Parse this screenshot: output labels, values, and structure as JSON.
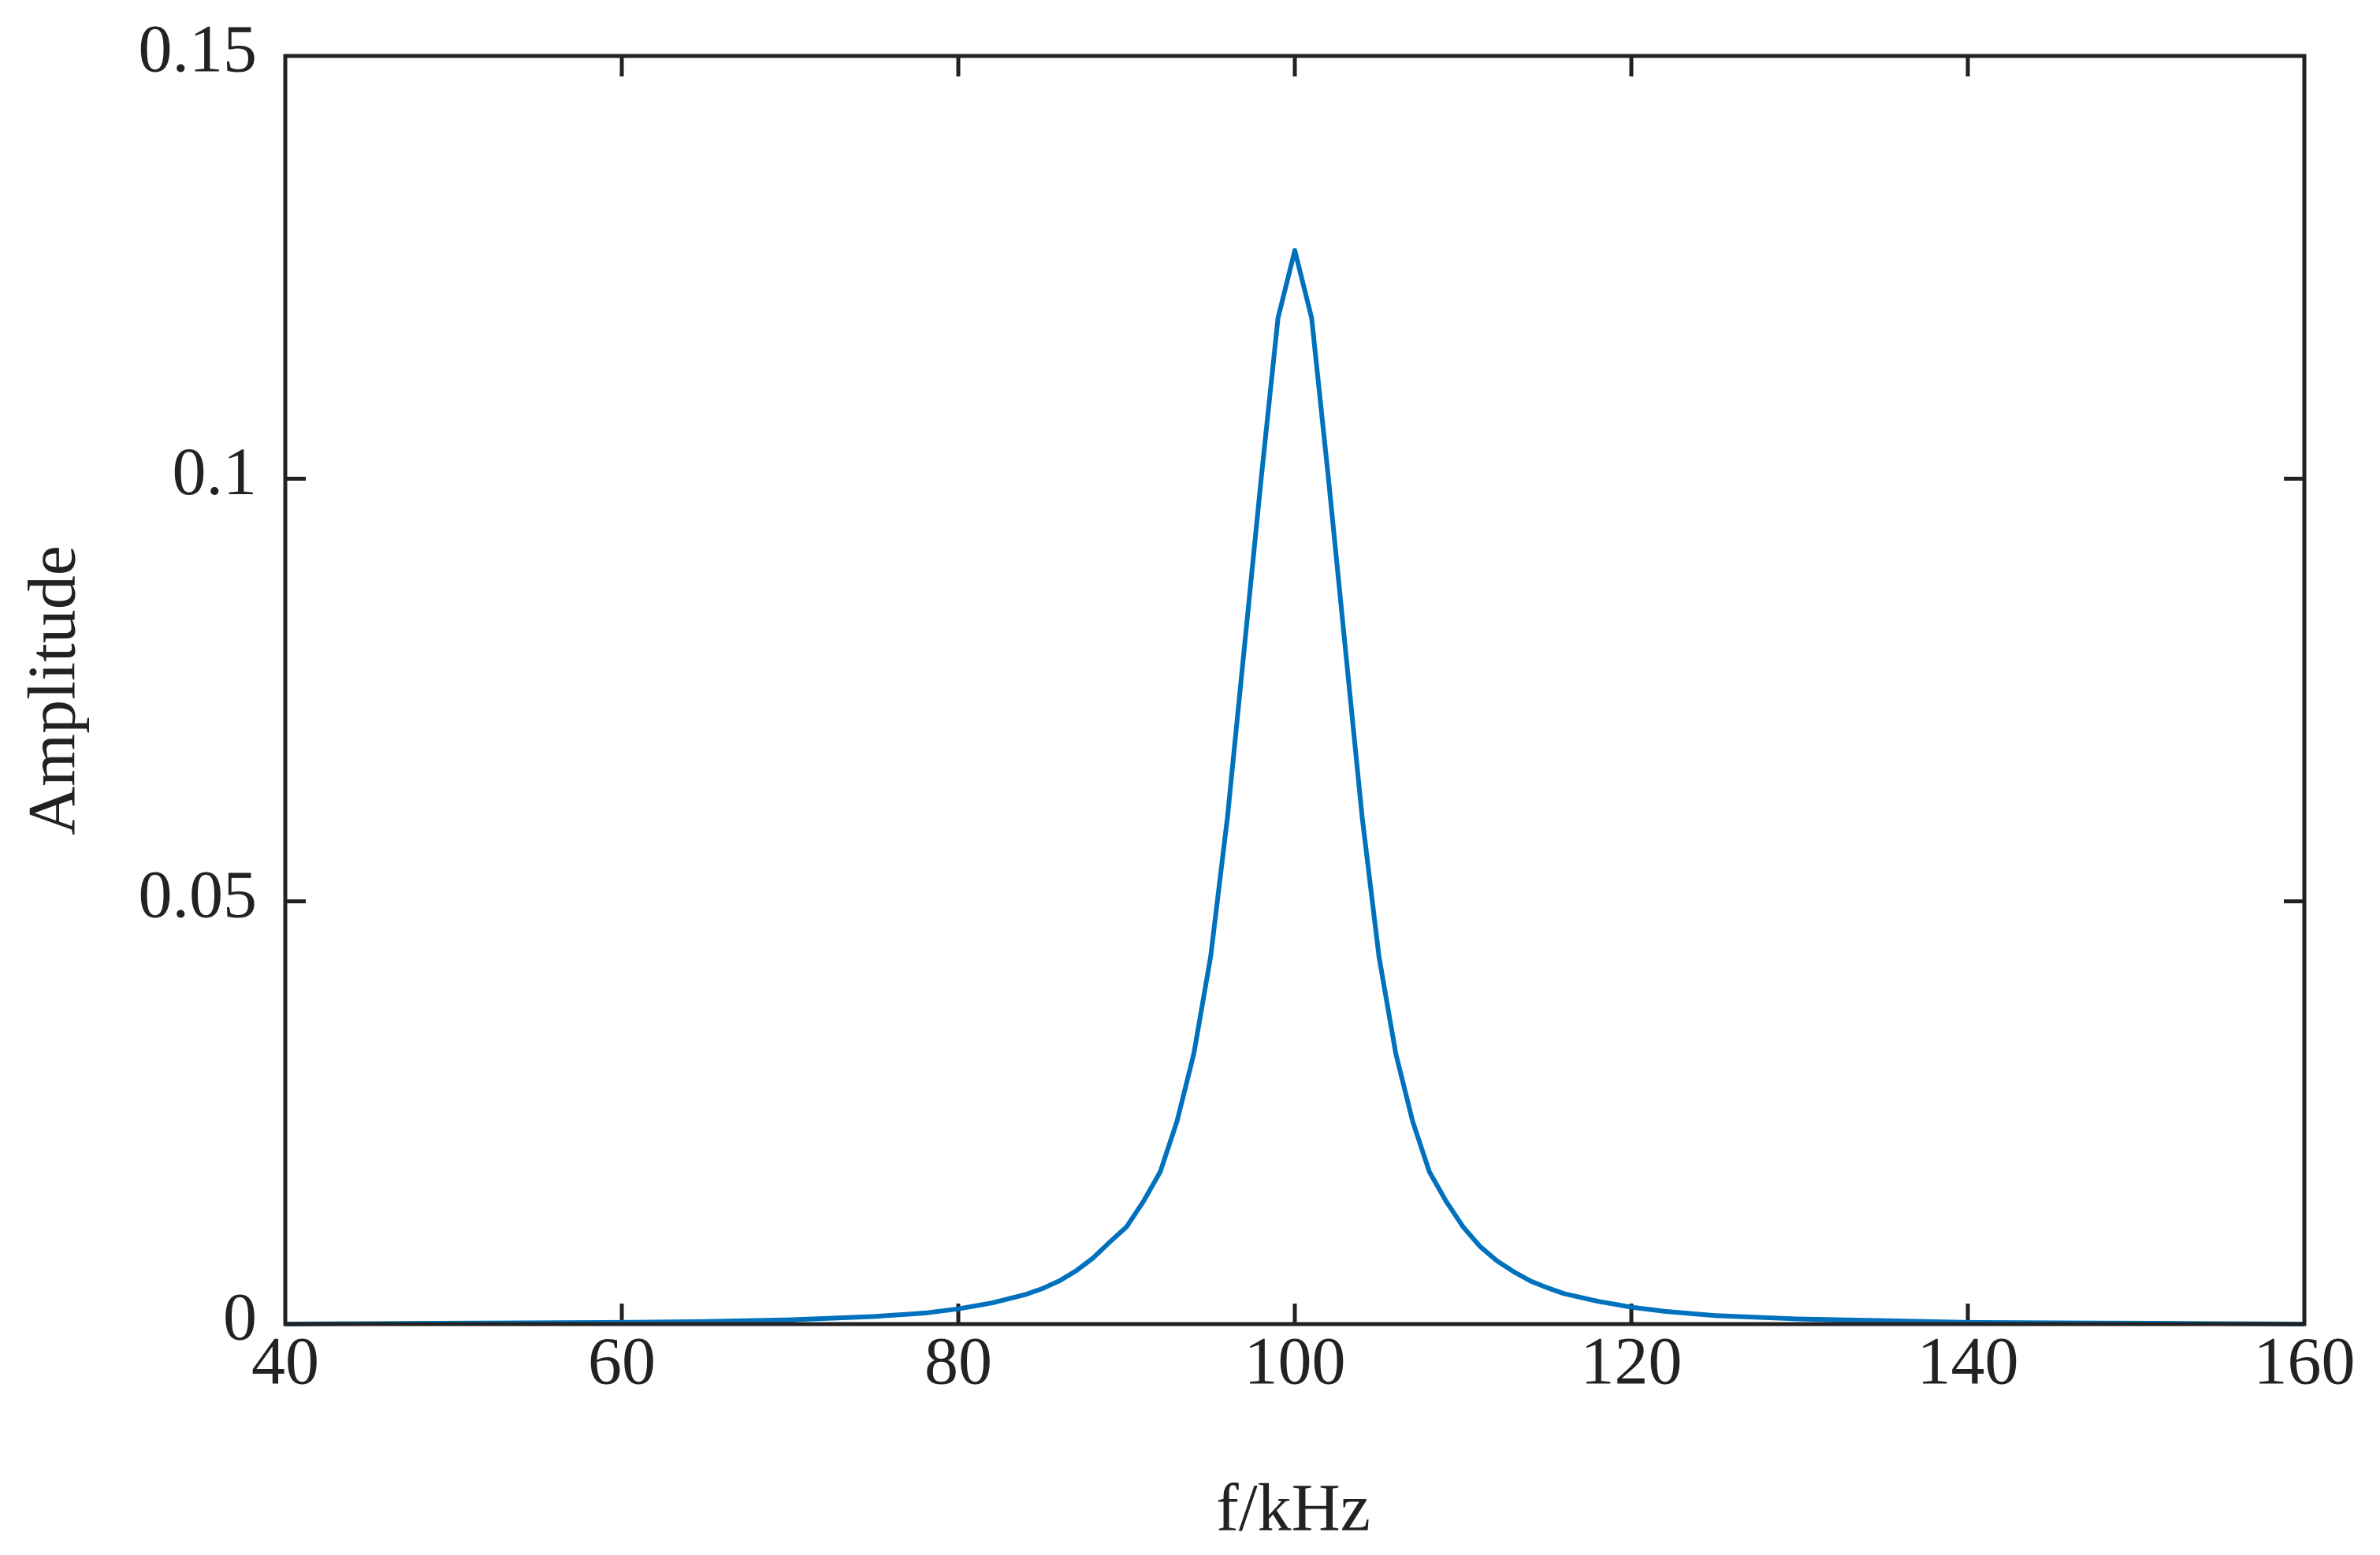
{
  "chart_data": {
    "type": "line",
    "xlabel": "f/kHz",
    "ylabel": "Amplitude",
    "x": [
      40,
      50,
      60,
      65,
      70,
      75,
      78,
      80,
      82,
      84,
      85,
      86,
      87,
      88,
      89,
      90,
      91,
      92,
      93,
      94,
      95,
      96,
      97,
      98,
      99,
      100,
      101,
      102,
      103,
      104,
      105,
      106,
      107,
      108,
      109,
      110,
      111,
      112,
      113,
      114,
      115,
      116,
      118,
      120,
      122,
      125,
      130,
      140,
      150,
      160
    ],
    "series": [
      {
        "color": "#0072bd",
        "values": [
          0,
          0.0001,
          0.0002,
          0.0003,
          0.0005,
          0.0009,
          0.0013,
          0.0018,
          0.0025,
          0.0035,
          0.0042,
          0.0051,
          0.0063,
          0.0078,
          0.0097,
          0.0115,
          0.0145,
          0.018,
          0.024,
          0.032,
          0.0435,
          0.06,
          0.08,
          0.1,
          0.119,
          0.127,
          0.119,
          0.1,
          0.08,
          0.06,
          0.0435,
          0.032,
          0.024,
          0.018,
          0.0145,
          0.0115,
          0.0092,
          0.0075,
          0.0062,
          0.0051,
          0.0043,
          0.0036,
          0.0027,
          0.002,
          0.0015,
          0.001,
          0.0006,
          0.0002,
          0.0001,
          0
        ]
      }
    ],
    "xlim": [
      40,
      160
    ],
    "xticks": [
      40,
      60,
      80,
      100,
      120,
      140,
      160
    ],
    "ylim": [
      0,
      0.15
    ],
    "yticks": [
      0,
      0.05,
      0.1,
      0.15
    ]
  }
}
